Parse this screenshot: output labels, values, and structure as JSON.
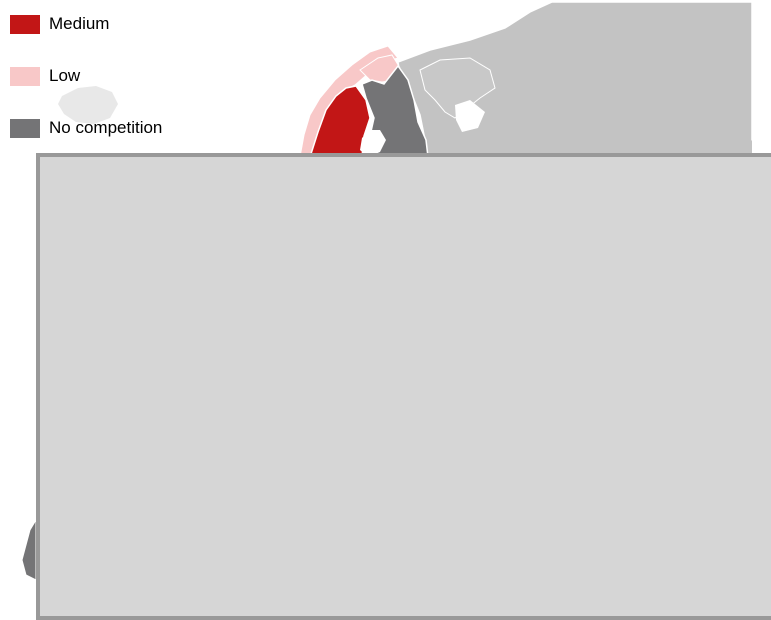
{
  "legend": {
    "items": [
      {
        "label": "Medium",
        "color": "#c21616"
      },
      {
        "label": "Low",
        "color": "#f8c8c8"
      },
      {
        "label": "No competition",
        "color": "#747476"
      }
    ]
  },
  "map": {
    "land_color": "#c3c3c3",
    "light_land_color": "#e8e8e8",
    "border_color": "#ffffff",
    "overlay_color": "#d6d6d6",
    "overlay_border_color": "#999999"
  }
}
